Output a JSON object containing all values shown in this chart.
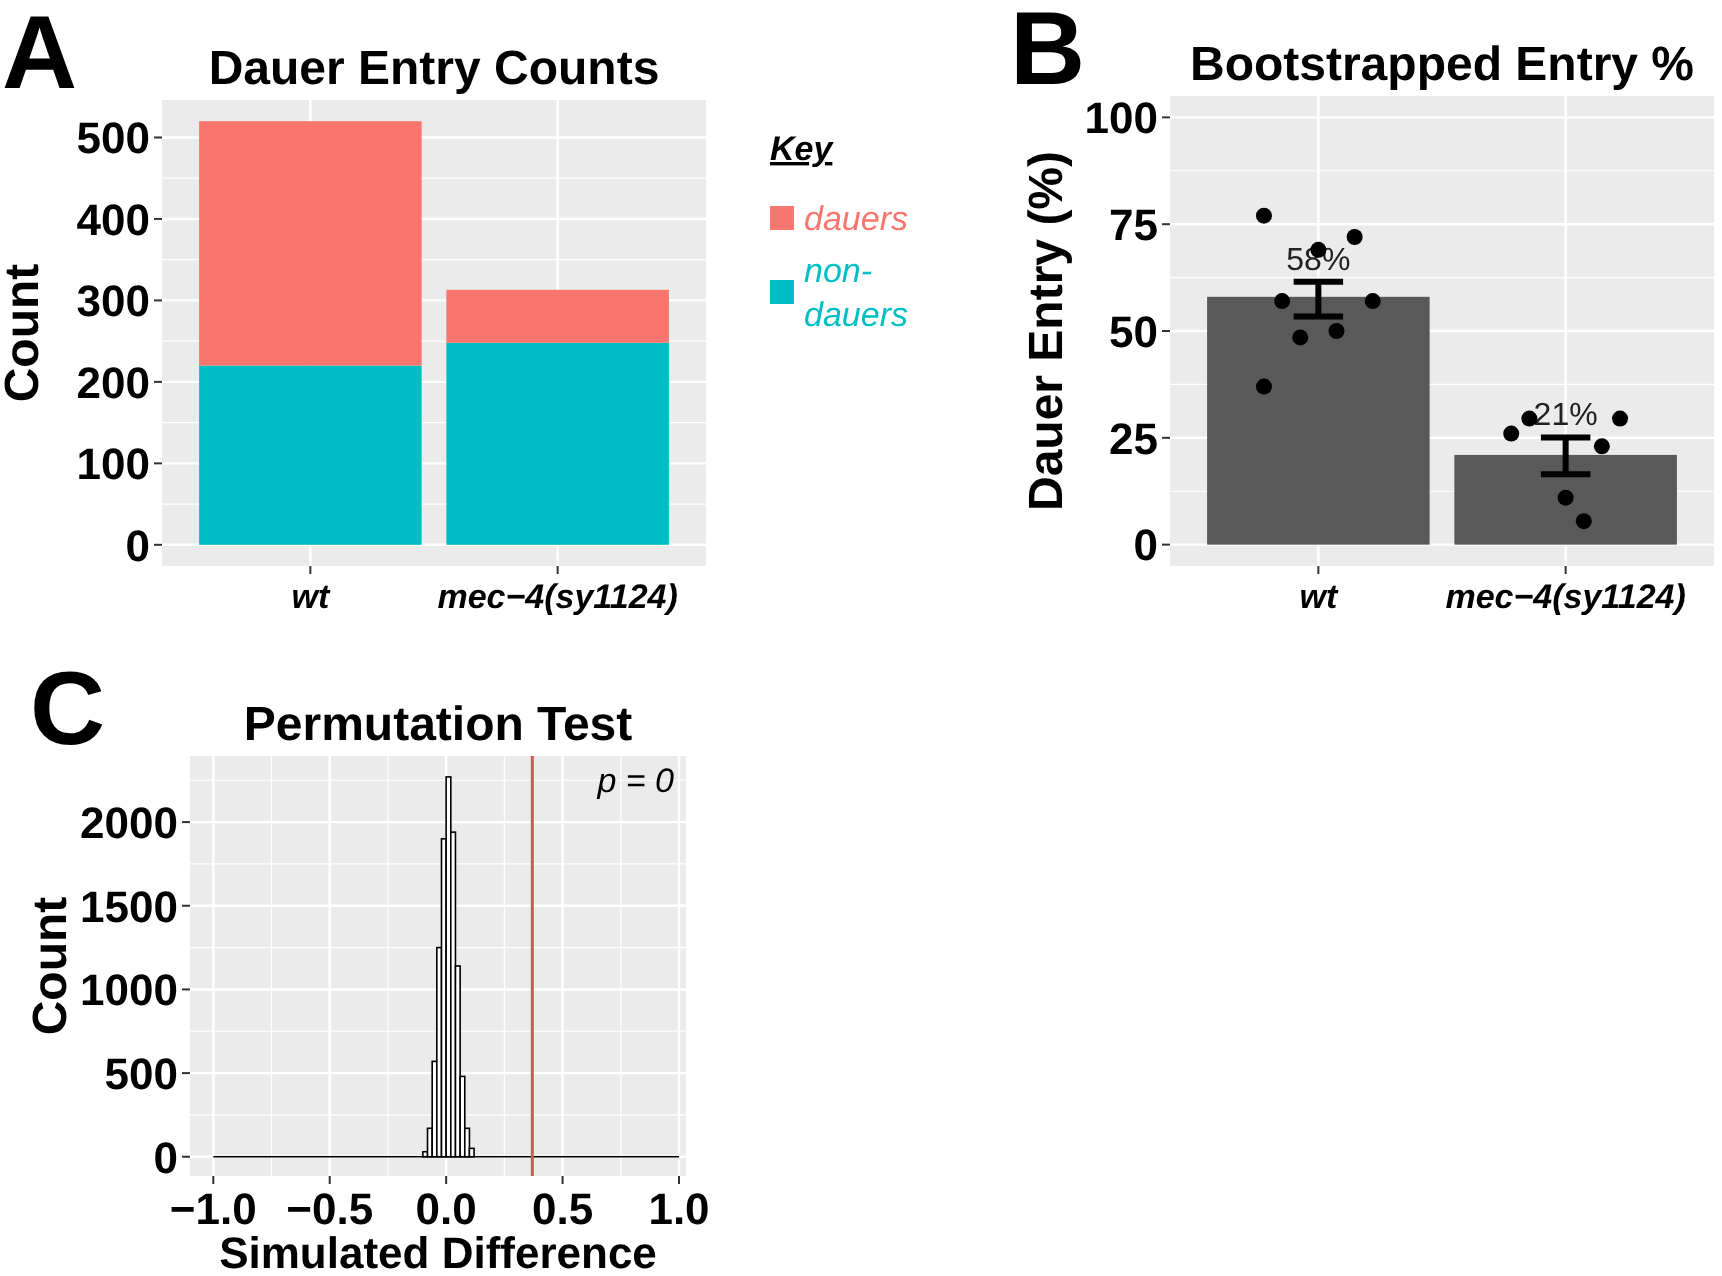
{
  "chart_data": [
    {
      "type": "bar",
      "title": "Dauer Entry Counts",
      "ylabel": "Count",
      "legend_title": "Key",
      "annotations": [
        "A"
      ],
      "categories": [
        "wt",
        "mec−4(sy1124)"
      ],
      "stacked": true,
      "legend": "right",
      "grid": true,
      "ylim": [
        -26,
        546
      ],
      "yticks": [
        0,
        100,
        200,
        300,
        400,
        500
      ],
      "series": [
        {
          "name": "non-dauers",
          "color": "#00bfc4",
          "values": [
            220,
            248
          ]
        },
        {
          "name": "dauers",
          "color": "#f8766d",
          "values": [
            300,
            65
          ]
        }
      ]
    },
    {
      "type": "bar",
      "title": "Bootstrapped Entry %",
      "ylabel": "Dauer Entry (%)",
      "annotations": [
        "B"
      ],
      "categories": [
        "wt",
        "mec−4(sy1124)"
      ],
      "grid": true,
      "ylim": [
        -5,
        105
      ],
      "yticks": [
        0,
        25,
        50,
        75,
        100
      ],
      "series": [
        {
          "type": "bar",
          "color": "#595959",
          "values": [
            58,
            21
          ],
          "errors": [
            [
              53.4,
              61.5
            ],
            [
              16.5,
              25.1
            ]
          ],
          "value_labels": [
            "58%",
            "21%"
          ]
        },
        {
          "type": "scatter",
          "color": "#000000",
          "x": [
            "wt",
            "wt",
            "wt",
            "wt",
            "wt",
            "wt",
            "wt",
            "wt",
            "mec−4(sy1124)",
            "mec−4(sy1124)",
            "mec−4(sy1124)",
            "mec−4(sy1124)",
            "mec−4(sy1124)",
            "mec−4(sy1124)"
          ],
          "values": [
            77,
            72,
            69,
            57,
            57,
            50,
            48.5,
            37,
            26,
            23,
            11,
            29.5,
            29.5,
            5.5
          ]
        }
      ]
    },
    {
      "type": "histogram",
      "title": "Permutation Test",
      "xlabel": "Simulated Difference",
      "ylabel": "Count",
      "annotations": [
        "C",
        "p = 0"
      ],
      "grid": true,
      "color": "#ffffff",
      "xlim": [
        -1.1,
        1.03
      ],
      "xticks": [
        {
          "value": -1,
          "label": "−1.0"
        },
        {
          "value": -0.5,
          "label": "−0.5"
        },
        {
          "value": 0,
          "label": "0.0"
        },
        {
          "value": 0.5,
          "label": "0.5"
        },
        {
          "value": 1,
          "label": "1.0"
        }
      ],
      "ylim": [
        -115,
        2395
      ],
      "yticks": [
        0,
        500,
        1000,
        1500,
        2000
      ],
      "bins": [
        -0.1,
        -0.08,
        -0.06,
        -0.04,
        -0.02,
        0,
        0.02,
        0.04,
        0.06,
        0.08,
        0.1,
        0.12
      ],
      "values": [
        30,
        170,
        570,
        1250,
        1900,
        2270,
        1940,
        1140,
        480,
        170,
        50
      ],
      "series": [
        {
          "type": "line",
          "color": "#000000",
          "x": [
            -1,
            1
          ],
          "values": [
            0,
            0
          ]
        }
      ],
      "ref_lines": [
        {
          "axis": "x",
          "value": 0.37,
          "color": "#d9534f"
        }
      ]
    }
  ]
}
